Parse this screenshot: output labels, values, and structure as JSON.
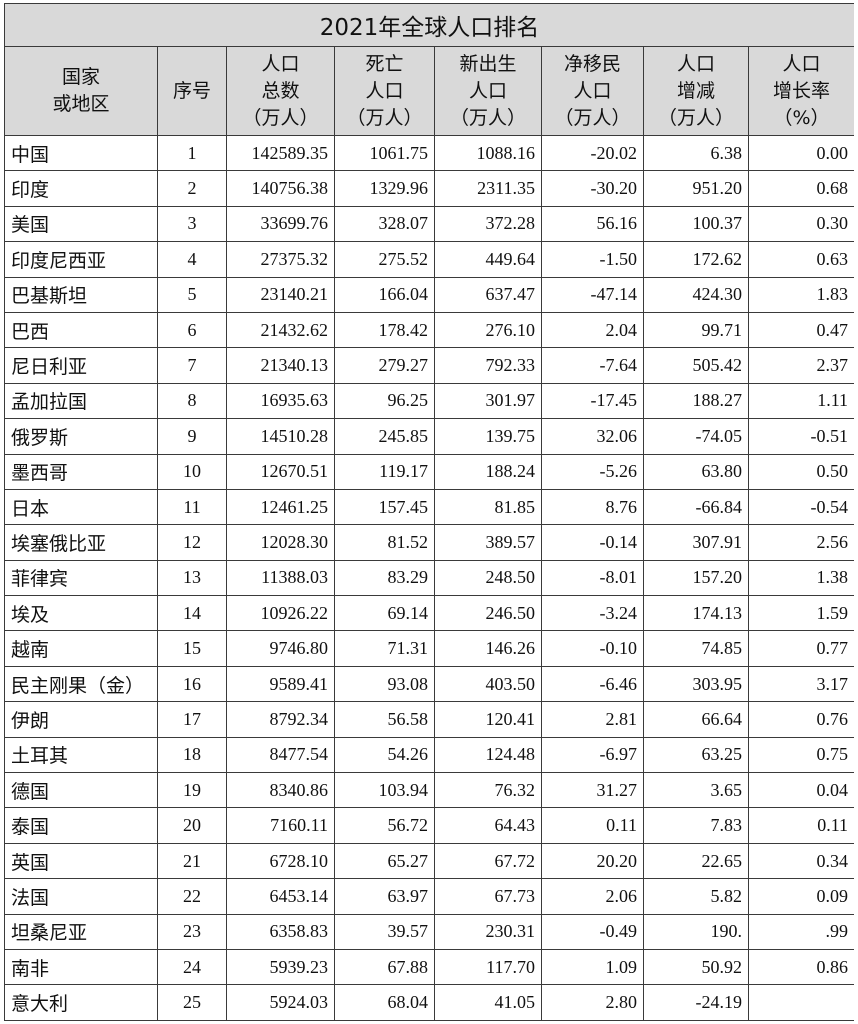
{
  "title": "2021年全球人口排名",
  "headers": [
    [
      "国家",
      "或地区"
    ],
    [
      "序号"
    ],
    [
      "人口",
      "总数",
      "（万人）"
    ],
    [
      "死亡",
      "人口",
      "（万人）"
    ],
    [
      "新出生",
      "人口",
      "（万人）"
    ],
    [
      "净移民",
      "人口",
      "（万人）"
    ],
    [
      "人口",
      "增减",
      "（万人）"
    ],
    [
      "人口",
      "增长率",
      "（%）"
    ]
  ],
  "rows": [
    [
      "中国",
      "1",
      "142589.35",
      "1061.75",
      "1088.16",
      "-20.02",
      "6.38",
      "0.00"
    ],
    [
      "印度",
      "2",
      "140756.38",
      "1329.96",
      "2311.35",
      "-30.20",
      "951.20",
      "0.68"
    ],
    [
      "美国",
      "3",
      "33699.76",
      "328.07",
      "372.28",
      "56.16",
      "100.37",
      "0.30"
    ],
    [
      "印度尼西亚",
      "4",
      "27375.32",
      "275.52",
      "449.64",
      "-1.50",
      "172.62",
      "0.63"
    ],
    [
      "巴基斯坦",
      "5",
      "23140.21",
      "166.04",
      "637.47",
      "-47.14",
      "424.30",
      "1.83"
    ],
    [
      "巴西",
      "6",
      "21432.62",
      "178.42",
      "276.10",
      "2.04",
      "99.71",
      "0.47"
    ],
    [
      "尼日利亚",
      "7",
      "21340.13",
      "279.27",
      "792.33",
      "-7.64",
      "505.42",
      "2.37"
    ],
    [
      "孟加拉国",
      "8",
      "16935.63",
      "96.25",
      "301.97",
      "-17.45",
      "188.27",
      "1.11"
    ],
    [
      "俄罗斯",
      "9",
      "14510.28",
      "245.85",
      "139.75",
      "32.06",
      "-74.05",
      "-0.51"
    ],
    [
      "墨西哥",
      "10",
      "12670.51",
      "119.17",
      "188.24",
      "-5.26",
      "63.80",
      "0.50"
    ],
    [
      "日本",
      "11",
      "12461.25",
      "157.45",
      "81.85",
      "8.76",
      "-66.84",
      "-0.54"
    ],
    [
      "埃塞俄比亚",
      "12",
      "12028.30",
      "81.52",
      "389.57",
      "-0.14",
      "307.91",
      "2.56"
    ],
    [
      "菲律宾",
      "13",
      "11388.03",
      "83.29",
      "248.50",
      "-8.01",
      "157.20",
      "1.38"
    ],
    [
      "埃及",
      "14",
      "10926.22",
      "69.14",
      "246.50",
      "-3.24",
      "174.13",
      "1.59"
    ],
    [
      "越南",
      "15",
      "9746.80",
      "71.31",
      "146.26",
      "-0.10",
      "74.85",
      "0.77"
    ],
    [
      "民主刚果（金）",
      "16",
      "9589.41",
      "93.08",
      "403.50",
      "-6.46",
      "303.95",
      "3.17"
    ],
    [
      "伊朗",
      "17",
      "8792.34",
      "56.58",
      "120.41",
      "2.81",
      "66.64",
      "0.76"
    ],
    [
      "土耳其",
      "18",
      "8477.54",
      "54.26",
      "124.48",
      "-6.97",
      "63.25",
      "0.75"
    ],
    [
      "德国",
      "19",
      "8340.86",
      "103.94",
      "76.32",
      "31.27",
      "3.65",
      "0.04"
    ],
    [
      "泰国",
      "20",
      "7160.11",
      "56.72",
      "64.43",
      "0.11",
      "7.83",
      "0.11"
    ],
    [
      "英国",
      "21",
      "6728.10",
      "65.27",
      "67.72",
      "20.20",
      "22.65",
      "0.34"
    ],
    [
      "法国",
      "22",
      "6453.14",
      "63.97",
      "67.73",
      "2.06",
      "5.82",
      "0.09"
    ],
    [
      "坦桑尼亚",
      "23",
      "6358.83",
      "39.57",
      "230.31",
      "-0.49",
      "190.",
      ".99"
    ],
    [
      "南非",
      "24",
      "5939.23",
      "67.88",
      "117.70",
      "1.09",
      "50.92",
      "0.86"
    ],
    [
      "意大利",
      "25",
      "5924.03",
      "68.04",
      "41.05",
      "2.80",
      "-24.19",
      ""
    ]
  ]
}
